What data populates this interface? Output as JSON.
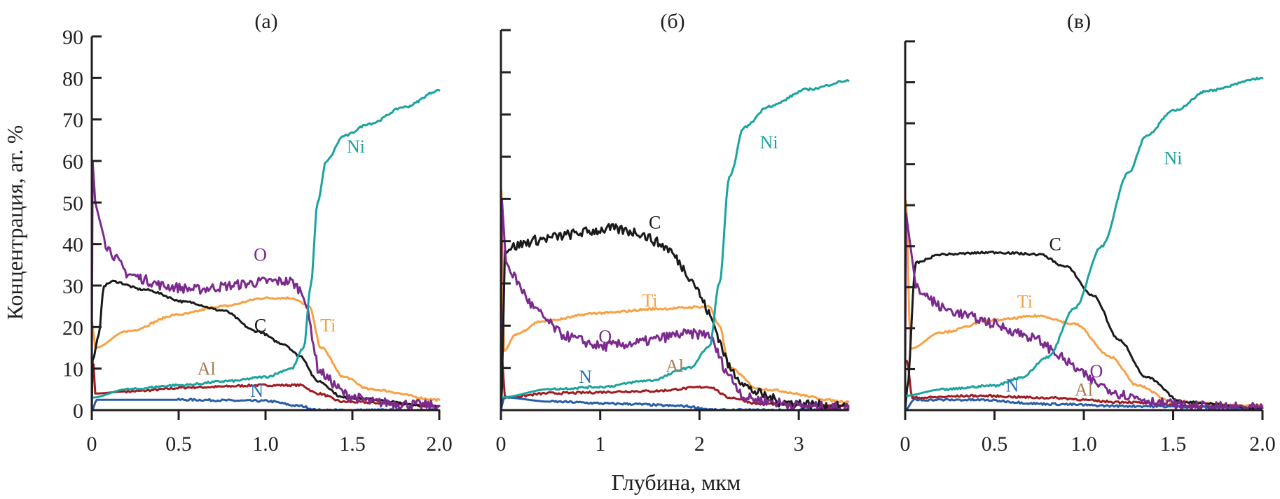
{
  "chart_data": [
    {
      "type": "line",
      "title": "(а)",
      "xlabel": "Глубина, мкм",
      "ylabel": "Концентрация, ат. %",
      "xlim": [
        0,
        2.0
      ],
      "ylim": [
        0,
        90
      ],
      "xticks": [
        0,
        0.5,
        1.0,
        1.5,
        2.0
      ],
      "xtick_labels": [
        "0",
        "0.5",
        "1.0",
        "1.5",
        "2.0"
      ],
      "yticks": [
        0,
        10,
        20,
        30,
        40,
        50,
        60,
        70,
        80,
        90
      ],
      "ytick_labels": [
        "0",
        "10",
        "20",
        "30",
        "40",
        "50",
        "60",
        "70",
        "80",
        "90"
      ],
      "series": [
        {
          "name": "Ni",
          "color": "#1ba3a0",
          "label_color": "#1ba3a0",
          "label_at": [
            1.52,
            62
          ],
          "x": [
            0,
            0.2,
            0.5,
            0.8,
            1.0,
            1.15,
            1.22,
            1.26,
            1.3,
            1.35,
            1.45,
            1.6,
            1.8,
            2.0
          ],
          "y": [
            3,
            5,
            6,
            7,
            8,
            10,
            15,
            30,
            50,
            60,
            66,
            69,
            73,
            77
          ]
        },
        {
          "name": "O",
          "color": "#7b2a8e",
          "label_color": "#7b2a8e",
          "label_at": [
            0.97,
            36
          ],
          "noisy": true,
          "x": [
            0,
            0.005,
            0.02,
            0.08,
            0.2,
            0.4,
            0.6,
            0.8,
            1.0,
            1.15,
            1.22,
            1.26,
            1.3,
            1.45,
            1.6,
            2.0
          ],
          "y": [
            10,
            60,
            50,
            40,
            33,
            30,
            29,
            30,
            31,
            31,
            28,
            20,
            10,
            4,
            2,
            1
          ]
        },
        {
          "name": "C",
          "color": "#1a1a1a",
          "label_color": "#1a1a1a",
          "label_at": [
            0.97,
            19
          ],
          "x": [
            0,
            0.005,
            0.04,
            0.07,
            0.12,
            0.3,
            0.55,
            0.75,
            0.95,
            1.1,
            1.2,
            1.3,
            1.45,
            2.0
          ],
          "y": [
            0,
            12,
            18,
            30,
            31,
            29,
            26,
            24,
            19,
            16,
            13,
            7,
            3,
            1
          ]
        },
        {
          "name": "Ti",
          "color": "#f7a145",
          "label_color": "#f7a145",
          "label_at": [
            1.36,
            19
          ],
          "x": [
            0,
            0.02,
            0.2,
            0.5,
            0.75,
            1.0,
            1.15,
            1.25,
            1.32,
            1.45,
            1.6,
            2.0
          ],
          "y": [
            22,
            15,
            19,
            23,
            25,
            27,
            27,
            25,
            15,
            8,
            5,
            2.5
          ]
        },
        {
          "name": "Al",
          "color": "#a01c20",
          "label_color": "#a67c52",
          "label_at": [
            0.66,
            8.5
          ],
          "x": [
            0,
            0.01,
            0.02,
            0.2,
            0.6,
            1.0,
            1.2,
            1.3,
            1.45,
            2.0
          ],
          "y": [
            11,
            11,
            4,
            4.5,
            5.5,
            6,
            6,
            4,
            2,
            1
          ]
        },
        {
          "name": "N",
          "color": "#2a5da8",
          "label_color": "#2a73b8",
          "label_at": [
            0.95,
            3.2
          ],
          "x": [
            0,
            0.03,
            0.5,
            1.0,
            1.2,
            1.3,
            2.0
          ],
          "y": [
            0,
            2.5,
            2.5,
            2.2,
            1,
            0,
            0
          ]
        }
      ]
    },
    {
      "type": "line",
      "title": "(б)",
      "xlim": [
        0,
        3.5
      ],
      "ylim": [
        0,
        90
      ],
      "xticks": [
        0,
        1,
        2,
        3
      ],
      "xtick_labels": [
        "0",
        "1",
        "2",
        "3"
      ],
      "yticks": [
        0,
        10,
        20,
        30,
        40,
        50,
        60,
        70,
        80,
        90
      ],
      "series": [
        {
          "name": "Ni",
          "color": "#1ba3a0",
          "label_color": "#1ba3a0",
          "label_at": [
            2.7,
            62
          ],
          "x": [
            0,
            0.5,
            1.0,
            1.5,
            1.9,
            2.1,
            2.2,
            2.3,
            2.45,
            2.7,
            3.1,
            3.5
          ],
          "y": [
            3,
            5,
            5.5,
            7,
            10,
            15,
            30,
            55,
            67,
            72,
            76,
            78
          ]
        },
        {
          "name": "C",
          "color": "#1a1a1a",
          "label_color": "#1a1a1a",
          "label_at": [
            1.55,
            43
          ],
          "noisy": true,
          "x": [
            0,
            0.01,
            0.04,
            0.3,
            0.8,
            1.1,
            1.4,
            1.7,
            1.95,
            2.15,
            2.3,
            2.5,
            2.8,
            3.5
          ],
          "y": [
            0,
            5,
            38,
            40,
            42,
            43,
            42,
            38,
            30,
            20,
            10,
            5,
            2,
            0.5
          ]
        },
        {
          "name": "O",
          "color": "#7b2a8e",
          "label_color": "#7b2a8e",
          "label_at": [
            1.05,
            16
          ],
          "noisy": true,
          "x": [
            0,
            0.01,
            0.05,
            0.3,
            0.6,
            1.0,
            1.4,
            1.8,
            2.1,
            2.25,
            2.45,
            3.0,
            3.5
          ],
          "y": [
            10,
            50,
            35,
            25,
            18,
            15,
            16,
            18,
            18,
            10,
            3,
            1,
            0.5
          ]
        },
        {
          "name": "Ti",
          "color": "#f7a145",
          "label_color": "#f7a145",
          "label_at": [
            1.5,
            24.5
          ],
          "x": [
            0,
            0.005,
            0.03,
            0.15,
            0.4,
            1.0,
            1.6,
            2.1,
            2.2,
            2.3,
            2.6,
            3.5
          ],
          "y": [
            30,
            52,
            14,
            18,
            21,
            23,
            24,
            24.5,
            20,
            10,
            5,
            2
          ]
        },
        {
          "name": "Al",
          "color": "#a01c20",
          "label_color": "#a67c52",
          "label_at": [
            1.75,
            9
          ],
          "x": [
            0,
            0.01,
            0.04,
            0.5,
            1.5,
            2.1,
            2.3,
            2.6,
            3.5
          ],
          "y": [
            13,
            13,
            3,
            4,
            4.5,
            5.5,
            3,
            1.5,
            1
          ]
        },
        {
          "name": "N",
          "color": "#2a5da8",
          "label_color": "#2a73b8",
          "label_at": [
            0.85,
            6.5
          ],
          "x": [
            0,
            0.03,
            0.5,
            1.2,
            1.8,
            2.2,
            3.5
          ],
          "y": [
            0,
            3,
            2,
            1.5,
            1,
            0,
            0
          ]
        }
      ]
    },
    {
      "type": "line",
      "title": "(в)",
      "xlim": [
        0,
        2.0
      ],
      "ylim": [
        0,
        90
      ],
      "xticks": [
        0,
        0.5,
        1.0,
        1.5,
        2.0
      ],
      "xtick_labels": [
        "0",
        "0.5",
        "1.0",
        "1.5",
        "2.0"
      ],
      "yticks": [
        0,
        10,
        20,
        30,
        40,
        50,
        60,
        70,
        80,
        90
      ],
      "series": [
        {
          "name": "Ni",
          "color": "#1ba3a0",
          "label_color": "#1ba3a0",
          "label_at": [
            1.5,
            60
          ],
          "x": [
            0,
            0.2,
            0.5,
            0.65,
            0.8,
            0.95,
            1.1,
            1.25,
            1.35,
            1.5,
            1.7,
            2.0
          ],
          "y": [
            3.5,
            5,
            6,
            8,
            13,
            25,
            40,
            58,
            67,
            73,
            78,
            81
          ]
        },
        {
          "name": "C",
          "color": "#1a1a1a",
          "label_color": "#1a1a1a",
          "label_at": [
            0.84,
            39
          ],
          "x": [
            0,
            0.01,
            0.06,
            0.2,
            0.5,
            0.75,
            0.9,
            1.05,
            1.2,
            1.35,
            1.55,
            2.0
          ],
          "y": [
            0,
            5,
            36,
            38,
            38.5,
            38,
            35,
            28,
            17,
            8,
            2,
            0.5
          ]
        },
        {
          "name": "O",
          "color": "#7b2a8e",
          "label_color": "#7b2a8e",
          "label_at": [
            1.07,
            8
          ],
          "noisy": true,
          "x": [
            0,
            0.005,
            0.06,
            0.2,
            0.5,
            0.75,
            0.9,
            1.05,
            1.2,
            1.4,
            1.6,
            2.0
          ],
          "y": [
            10,
            48,
            30,
            25,
            21,
            17,
            12,
            7,
            4,
            2,
            1,
            0.5
          ]
        },
        {
          "name": "Ti",
          "color": "#f7a145",
          "label_color": "#f7a145",
          "label_at": [
            0.67,
            25
          ],
          "x": [
            0,
            0.005,
            0.03,
            0.2,
            0.5,
            0.75,
            0.95,
            1.15,
            1.3,
            1.5,
            2.0
          ],
          "y": [
            30,
            51,
            15,
            19,
            22,
            23,
            21,
            13,
            6,
            2,
            1
          ]
        },
        {
          "name": "Al",
          "color": "#a01c20",
          "label_color": "#a67c52",
          "label_at": [
            1.0,
            3.5
          ],
          "x": [
            0,
            0.01,
            0.04,
            0.4,
            0.8,
            1.2,
            1.6,
            2.0
          ],
          "y": [
            12,
            12,
            3,
            3.5,
            3,
            2,
            1,
            1
          ]
        },
        {
          "name": "N",
          "color": "#2a5da8",
          "label_color": "#2a73b8",
          "label_at": [
            0.6,
            4.5
          ],
          "x": [
            0,
            0.05,
            0.4,
            0.8,
            1.2,
            2.0
          ],
          "y": [
            0,
            2.5,
            2.5,
            1.5,
            1,
            0.5
          ]
        }
      ]
    }
  ],
  "shared": {
    "ylabel": "Концентрация, ат. %",
    "xlabel": "Глубина, мкм"
  }
}
